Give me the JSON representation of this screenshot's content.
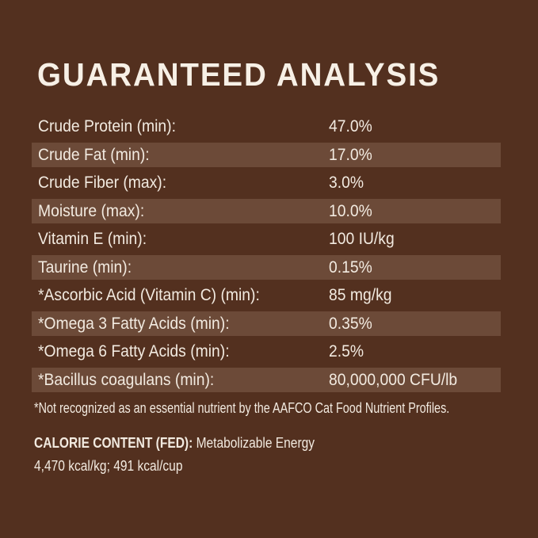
{
  "page": {
    "colors": {
      "background": "#53301F",
      "stripe": "#6C4A38",
      "text": "#F2EAE0",
      "title": "#F7F0E6"
    }
  },
  "title": "GUARANTEED ANALYSIS",
  "analysis_table": {
    "rows": [
      {
        "label": "Crude Protein (min):",
        "value": "47.0%",
        "striped": false
      },
      {
        "label": "Crude Fat (min):",
        "value": "17.0%",
        "striped": true
      },
      {
        "label": "Crude Fiber (max):",
        "value": "3.0%",
        "striped": false
      },
      {
        "label": "Moisture (max):",
        "value": "10.0%",
        "striped": true
      },
      {
        "label": "Vitamin E (min):",
        "value": "100 IU/kg",
        "striped": false
      },
      {
        "label": "Taurine (min):",
        "value": "0.15%",
        "striped": true
      },
      {
        "label": "*Ascorbic Acid (Vitamin C) (min):",
        "value": "85 mg/kg",
        "striped": false
      },
      {
        "label": "*Omega 3 Fatty Acids (min):",
        "value": "0.35%",
        "striped": true
      },
      {
        "label": "*Omega 6 Fatty Acids (min):",
        "value": "2.5%",
        "striped": false
      },
      {
        "label": "*Bacillus coagulans (min):",
        "value": "80,000,000 CFU/lb",
        "striped": true
      }
    ]
  },
  "footnote": "*Not recognized as an essential nutrient by the AAFCO Cat Food Nutrient Profiles.",
  "calorie": {
    "heading": "CALORIE CONTENT (FED):",
    "description": "Metabolizable Energy",
    "values": "4,470 kcal/kg; 491 kcal/cup"
  }
}
